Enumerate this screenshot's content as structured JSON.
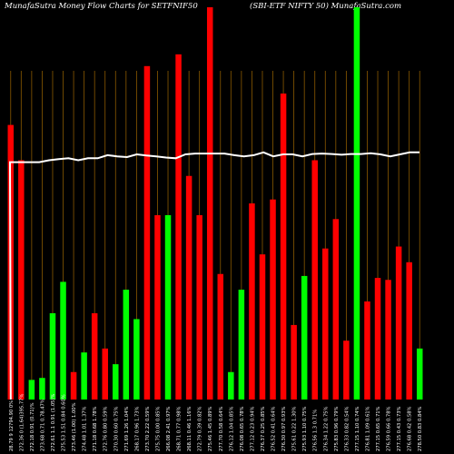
{
  "header": {
    "left": "MunafaSutra  Money Flow  Charts for SETFNIF50",
    "right": "(SBI-ETF NIFTY 50) MunafaSutra.com"
  },
  "chart_data": {
    "type": "bar",
    "background": "#000000",
    "colors": {
      "up": "#00ff00",
      "down": "#ff0000",
      "line": "#ffffff",
      "grid": "#8b5a00"
    },
    "ylim": [
      0,
      100
    ],
    "bars": [
      {
        "label": "28.79 9 12794.90 0%",
        "value": 70,
        "color": "down"
      },
      {
        "label": "272.36 0 (1.64)395.77%",
        "value": 61,
        "color": "down"
      },
      {
        "label": "272.18 0.91 (0.71)%",
        "value": 5,
        "color": "up"
      },
      {
        "label": "273.68 0.71 0.78.47%",
        "value": 5.5,
        "color": "up"
      },
      {
        "label": "272.61 1.1 0.91 (1.05)%",
        "value": 22,
        "color": "up"
      },
      {
        "label": "275.53 1.51 0.84 0.60%",
        "value": 30,
        "color": "up"
      },
      {
        "label": "273.46 (1.00) 1.00%",
        "value": 7,
        "color": "down"
      },
      {
        "label": "274.48 1.01 1.37%",
        "value": 12,
        "color": "up"
      },
      {
        "label": "271.18 0.68 1.78%",
        "value": 22,
        "color": "down"
      },
      {
        "label": "272.76 0.80 0.59%",
        "value": 13,
        "color": "down"
      },
      {
        "label": "270.30 0.60 0.75%",
        "value": 9,
        "color": "up"
      },
      {
        "label": "271.69 1.26 1.04%",
        "value": 28,
        "color": "up"
      },
      {
        "label": "268.17 0.96 1.73%",
        "value": 20.5,
        "color": "up"
      },
      {
        "label": "273.70 2.22 0.59%",
        "value": 85,
        "color": "down"
      },
      {
        "label": "275.75 0.00 0.85%",
        "value": 47,
        "color": "down"
      },
      {
        "label": "266.08 2.41 0.97%",
        "value": 47,
        "color": "up"
      },
      {
        "label": "268.71 0.77 0.98%",
        "value": 88,
        "color": "down"
      },
      {
        "label": "268.11 0.46 1.16%",
        "value": 57,
        "color": "down"
      },
      {
        "label": "272.79 0.39 0.82%",
        "value": 47,
        "color": "down"
      },
      {
        "label": "275.46 1.45 0.89%",
        "value": 100,
        "color": "down"
      },
      {
        "label": "277.70 0.58 0.64%",
        "value": 32,
        "color": "down"
      },
      {
        "label": "276.12 1.04 0.85%",
        "value": 7,
        "color": "up"
      },
      {
        "label": "276.08 0.65 0.78%",
        "value": 28,
        "color": "up"
      },
      {
        "label": "277.12 0.23 0.94%",
        "value": 50,
        "color": "down"
      },
      {
        "label": "276.37 0.25 0.85%",
        "value": 37,
        "color": "down"
      },
      {
        "label": "276.52 0.41 0.64%",
        "value": 51,
        "color": "down"
      },
      {
        "label": "276.30 0.97 0.93%",
        "value": 78,
        "color": "down"
      },
      {
        "label": "275.61 0.22 1.30%",
        "value": 19,
        "color": "down"
      },
      {
        "label": "275.93 1.10 0.75%",
        "value": 31.5,
        "color": "up"
      },
      {
        "label": "276.56 1.3 0.71%",
        "value": 61,
        "color": "down"
      },
      {
        "label": "276.34 1.22 0.75%",
        "value": 38.5,
        "color": "down"
      },
      {
        "label": "275.83 0.96 0.79%",
        "value": 46,
        "color": "down"
      },
      {
        "label": "276.33 0.82 0.54%",
        "value": 15,
        "color": "down"
      },
      {
        "label": "277.15 1.10 0.74%",
        "value": 100,
        "color": "up"
      },
      {
        "label": "276.81 1.09 0.61%",
        "value": 25,
        "color": "down"
      },
      {
        "label": "277.15 0.65 0.71%",
        "value": 31,
        "color": "down"
      },
      {
        "label": "276.59 0.66 0.78%",
        "value": 30.5,
        "color": "down"
      },
      {
        "label": "277.15 0.43 0.73%",
        "value": 39,
        "color": "down"
      },
      {
        "label": "276.68 0.42 0.58%",
        "value": 35,
        "color": "down"
      },
      {
        "label": "278.50 0.83 0.84%",
        "value": 13,
        "color": "up"
      }
    ],
    "line": [
      60.5,
      60.5,
      60.5,
      60.5,
      61,
      61.3,
      61.5,
      61,
      61.5,
      61.5,
      62.3,
      62,
      61.8,
      62.5,
      62.2,
      62,
      61.7,
      61.5,
      62.5,
      62.7,
      62.7,
      62.7,
      62.7,
      62.3,
      62,
      62.3,
      63,
      62,
      62.5,
      62.5,
      62,
      62.6,
      62.7,
      62.6,
      62.4,
      62.6,
      62.6,
      62.8,
      62.5,
      62,
      62.5,
      63,
      63
    ],
    "line_start_value": 0
  }
}
